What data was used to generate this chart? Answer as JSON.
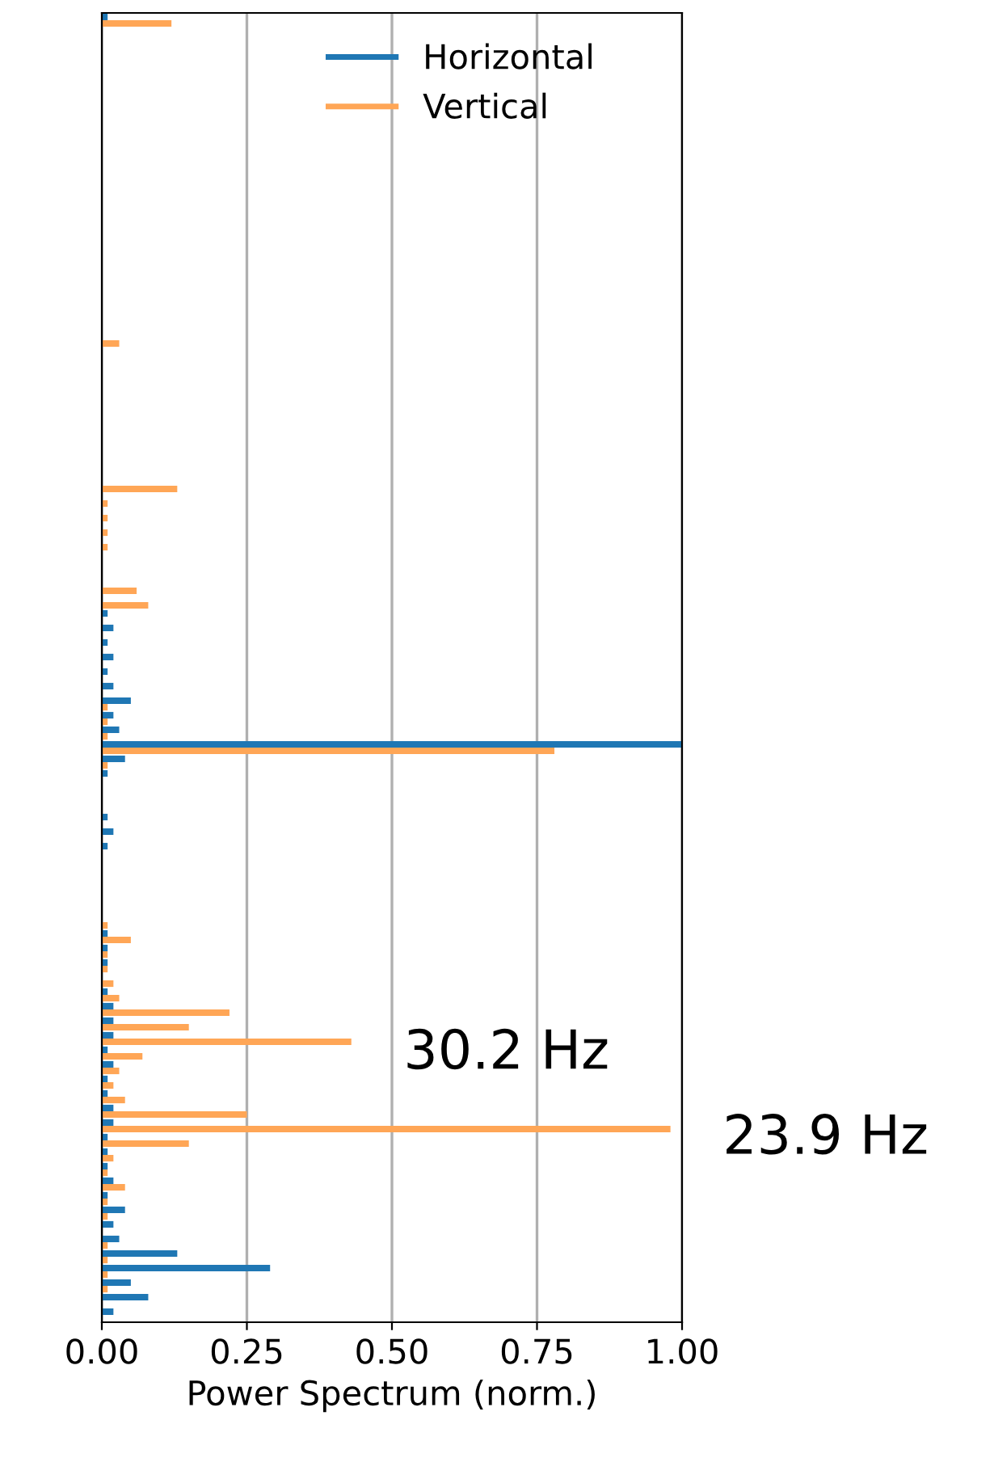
{
  "chart_data": {
    "type": "bar",
    "orientation": "horizontal",
    "xlabel": "Power Spectrum (norm.)",
    "categories": [
      null,
      null,
      null,
      null,
      null,
      null,
      null,
      null,
      null,
      null,
      null,
      null,
      null,
      null,
      null,
      null,
      null,
      null,
      null,
      null,
      null,
      null,
      null,
      null,
      null,
      null,
      null,
      null,
      null,
      null,
      null,
      null,
      null,
      null,
      null,
      null,
      null,
      null,
      null,
      null,
      null,
      null,
      null,
      null,
      null,
      null,
      null,
      null,
      null,
      null,
      null,
      null,
      null,
      null,
      null,
      null,
      null,
      null,
      null,
      null,
      null,
      null,
      null,
      null,
      null,
      null,
      null,
      null,
      null,
      null,
      null,
      null,
      null,
      null,
      null,
      null,
      null,
      null,
      null,
      null,
      null,
      null,
      null,
      null,
      null,
      null,
      null,
      null,
      null,
      null
    ],
    "series": [
      {
        "name": "Horizontal",
        "color": "#1f77b4",
        "values": [
          0.01,
          0,
          0,
          0,
          0,
          0,
          0,
          0,
          0,
          0,
          0,
          0,
          0,
          0,
          0,
          0,
          0,
          0,
          0,
          0,
          0,
          0,
          0,
          0,
          0,
          0,
          0,
          0,
          0,
          0,
          0,
          0,
          0,
          0,
          0,
          0,
          0,
          0,
          0,
          0,
          0,
          0.01,
          0.02,
          0.01,
          0.02,
          0.01,
          0.02,
          0.05,
          0.02,
          0.03,
          1.0,
          0.04,
          0.01,
          0,
          0,
          0.01,
          0.02,
          0.01,
          0,
          0,
          0,
          0,
          0,
          0.01,
          0.01,
          0.01,
          0,
          0.01,
          0.02,
          0.02,
          0.02,
          0.01,
          0.02,
          0.01,
          0.01,
          0.02,
          0.02,
          0.01,
          0.01,
          0.01,
          0.02,
          0.01,
          0.04,
          0.02,
          0.03,
          0.13,
          0.29,
          0.05,
          0.08,
          0.02
        ]
      },
      {
        "name": "Vertical",
        "color": "#ffa656",
        "values": [
          0.12,
          0,
          0,
          0,
          0,
          0,
          0,
          0,
          0,
          0,
          0,
          0,
          0,
          0,
          0,
          0,
          0,
          0,
          0,
          0,
          0,
          0,
          0.03,
          0,
          0,
          0,
          0,
          0,
          0,
          0,
          0,
          0,
          0.13,
          0.01,
          0.01,
          0.01,
          0.01,
          0,
          0,
          0.06,
          0.08,
          0,
          0,
          0,
          0,
          0,
          0,
          0.01,
          0.01,
          0.01,
          0.78,
          0.01,
          0,
          0,
          0,
          0,
          0,
          0,
          0,
          0,
          0,
          0,
          0.01,
          0.05,
          0.01,
          0.01,
          0.02,
          0.03,
          0.22,
          0.15,
          0.43,
          0.07,
          0.03,
          0.02,
          0.04,
          0.25,
          0.98,
          0.15,
          0.02,
          0.01,
          0.04,
          0.01,
          0.01,
          0,
          0.01,
          0.01,
          0.01,
          0.01,
          0,
          0
        ]
      }
    ],
    "xlim": [
      0,
      1
    ],
    "xticks": [
      {
        "value": 0,
        "label": "0.00"
      },
      {
        "value": 0.25,
        "label": "0.25"
      },
      {
        "value": 0.5,
        "label": "0.50"
      },
      {
        "value": 0.75,
        "label": "0.75"
      },
      {
        "value": 1,
        "label": "1.00"
      }
    ],
    "annotations": [
      "30.2 Hz",
      "23.9 Hz"
    ],
    "grid": "x",
    "legend": "top"
  }
}
